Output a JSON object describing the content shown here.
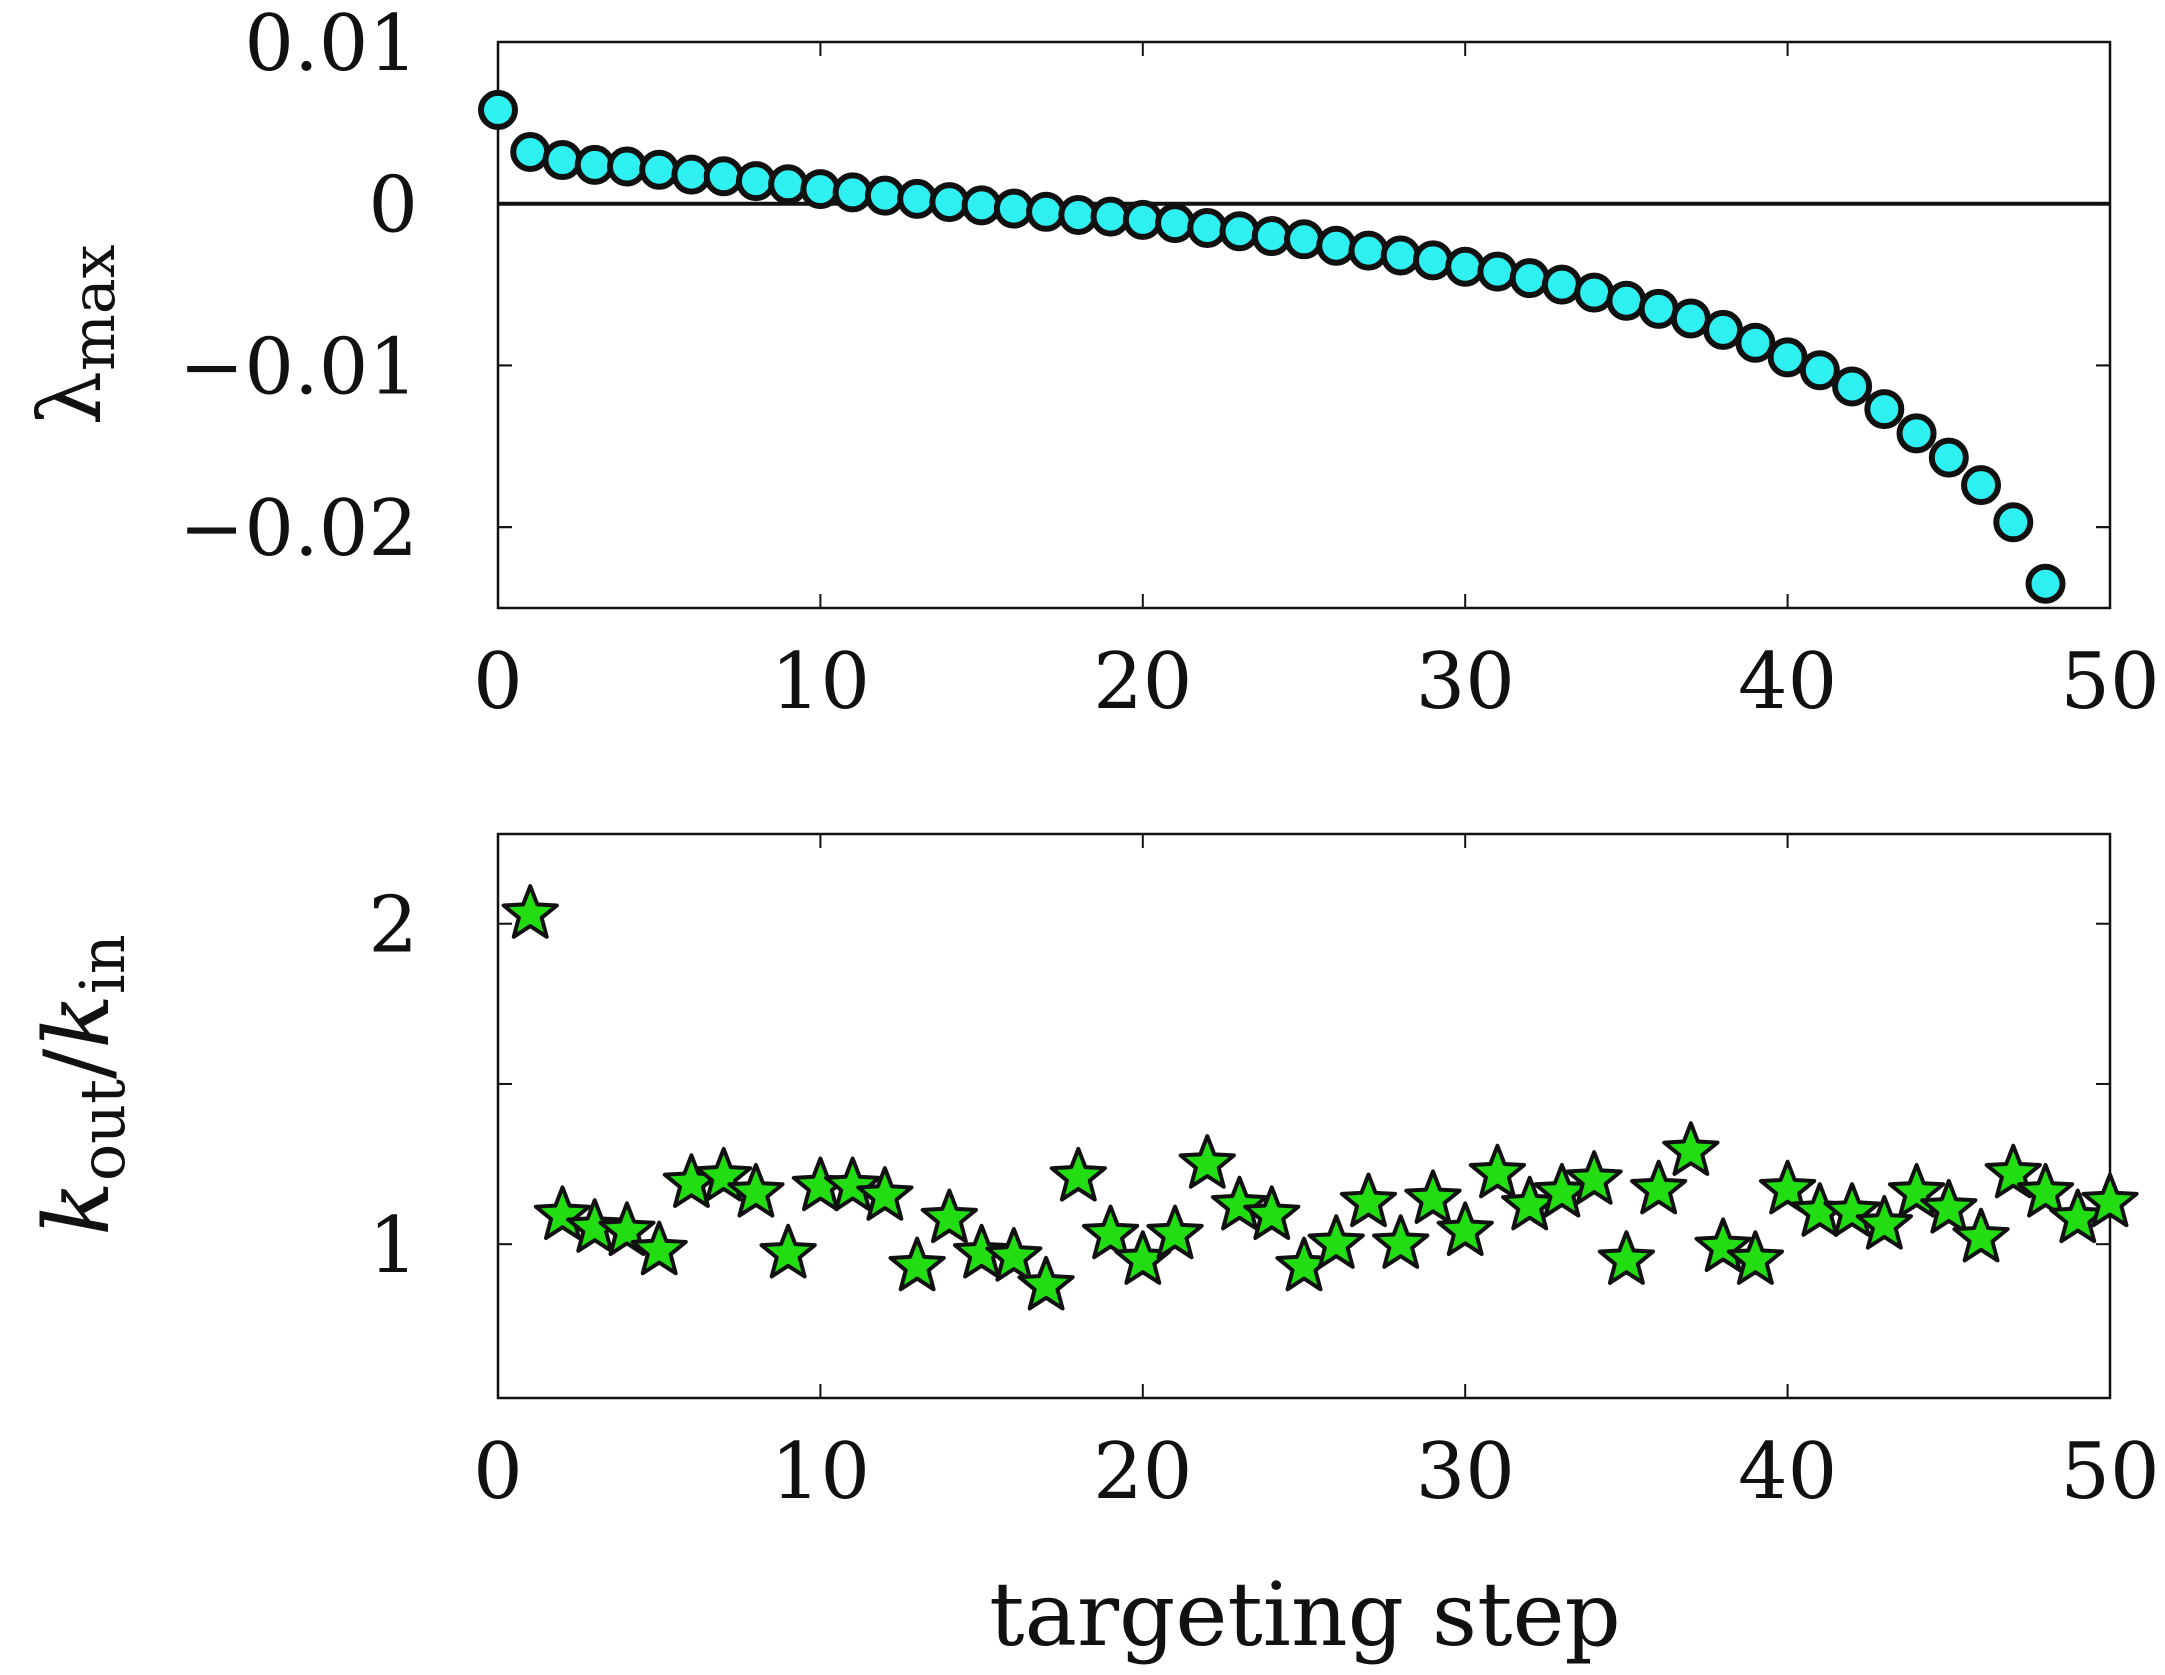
{
  "colors": {
    "marker_top": "#2ff0f0",
    "marker_bottom": "#22dd11",
    "marker_edge": "#111111",
    "axis": "#111111"
  },
  "chart_data": [
    {
      "type": "scatter",
      "marker": "circle",
      "ylabel": "λmax",
      "ylabel_main": "λ",
      "ylabel_sub": "max",
      "xlim": [
        0,
        50
      ],
      "ylim": [
        -0.025,
        0.01
      ],
      "xticks": [
        0,
        10,
        20,
        30,
        40,
        50
      ],
      "xtick_labels": [
        "0",
        "10",
        "20",
        "30",
        "40",
        "50"
      ],
      "yticks": [
        0.01,
        0,
        -0.01,
        -0.02
      ],
      "ytick_labels": [
        "0.01",
        "0",
        "−0.01",
        "−0.02"
      ],
      "hline": 0,
      "grid": false,
      "x": [
        0,
        1,
        2,
        3,
        4,
        5,
        6,
        7,
        8,
        9,
        10,
        11,
        12,
        13,
        14,
        15,
        16,
        17,
        18,
        19,
        20,
        21,
        22,
        23,
        24,
        25,
        26,
        27,
        28,
        29,
        30,
        31,
        32,
        33,
        34,
        35,
        36,
        37,
        38,
        39,
        40,
        41,
        42,
        43,
        44,
        45,
        46,
        47,
        48
      ],
      "y": [
        0.0058,
        0.0032,
        0.0027,
        0.0024,
        0.0023,
        0.0021,
        0.0018,
        0.0017,
        0.0014,
        0.0012,
        0.0009,
        0.0007,
        0.0005,
        0.0003,
        0.0001,
        -0.0001,
        -0.0003,
        -0.0005,
        -0.0007,
        -0.0008,
        -0.001,
        -0.0012,
        -0.0015,
        -0.0017,
        -0.002,
        -0.0022,
        -0.0026,
        -0.0029,
        -0.0032,
        -0.0035,
        -0.0039,
        -0.0042,
        -0.0046,
        -0.005,
        -0.0055,
        -0.006,
        -0.0065,
        -0.0071,
        -0.0078,
        -0.0086,
        -0.0095,
        -0.0103,
        -0.0113,
        -0.0127,
        -0.0142,
        -0.0157,
        -0.0174,
        -0.0197,
        -0.0235
      ]
    },
    {
      "type": "scatter",
      "marker": "star",
      "xlabel": "targeting step",
      "ylabel": "kout/kin",
      "ylabel_k": "k",
      "ylabel_out": "out",
      "ylabel_slash": "/",
      "ylabel_in": "in",
      "xlim": [
        0,
        50
      ],
      "ylim": [
        0.52,
        2.28
      ],
      "xticks": [
        0,
        10,
        20,
        30,
        40,
        50
      ],
      "xtick_labels": [
        "0",
        "10",
        "20",
        "30",
        "40",
        "50"
      ],
      "yticks": [
        1,
        2
      ],
      "ytick_labels": [
        "1",
        "2"
      ],
      "yminor_ticks": [
        1.5
      ],
      "grid": false,
      "x": [
        1,
        2,
        3,
        4,
        5,
        6,
        7,
        8,
        9,
        10,
        11,
        12,
        13,
        14,
        15,
        16,
        17,
        18,
        19,
        20,
        21,
        22,
        23,
        24,
        25,
        26,
        27,
        28,
        29,
        30,
        31,
        32,
        33,
        34,
        35,
        36,
        37,
        38,
        39,
        40,
        41,
        42,
        43,
        44,
        45,
        46,
        47,
        48,
        49,
        50
      ],
      "y": [
        2.03,
        1.09,
        1.05,
        1.04,
        0.98,
        1.19,
        1.21,
        1.16,
        0.97,
        1.18,
        1.18,
        1.15,
        0.93,
        1.08,
        0.97,
        0.96,
        0.87,
        1.21,
        1.03,
        0.95,
        1.03,
        1.25,
        1.12,
        1.09,
        0.93,
        1.0,
        1.13,
        1.0,
        1.14,
        1.04,
        1.22,
        1.12,
        1.16,
        1.2,
        0.95,
        1.17,
        1.29,
        0.99,
        0.95,
        1.17,
        1.1,
        1.1,
        1.06,
        1.16,
        1.11,
        1.02,
        1.22,
        1.16,
        1.08,
        1.13
      ]
    }
  ]
}
